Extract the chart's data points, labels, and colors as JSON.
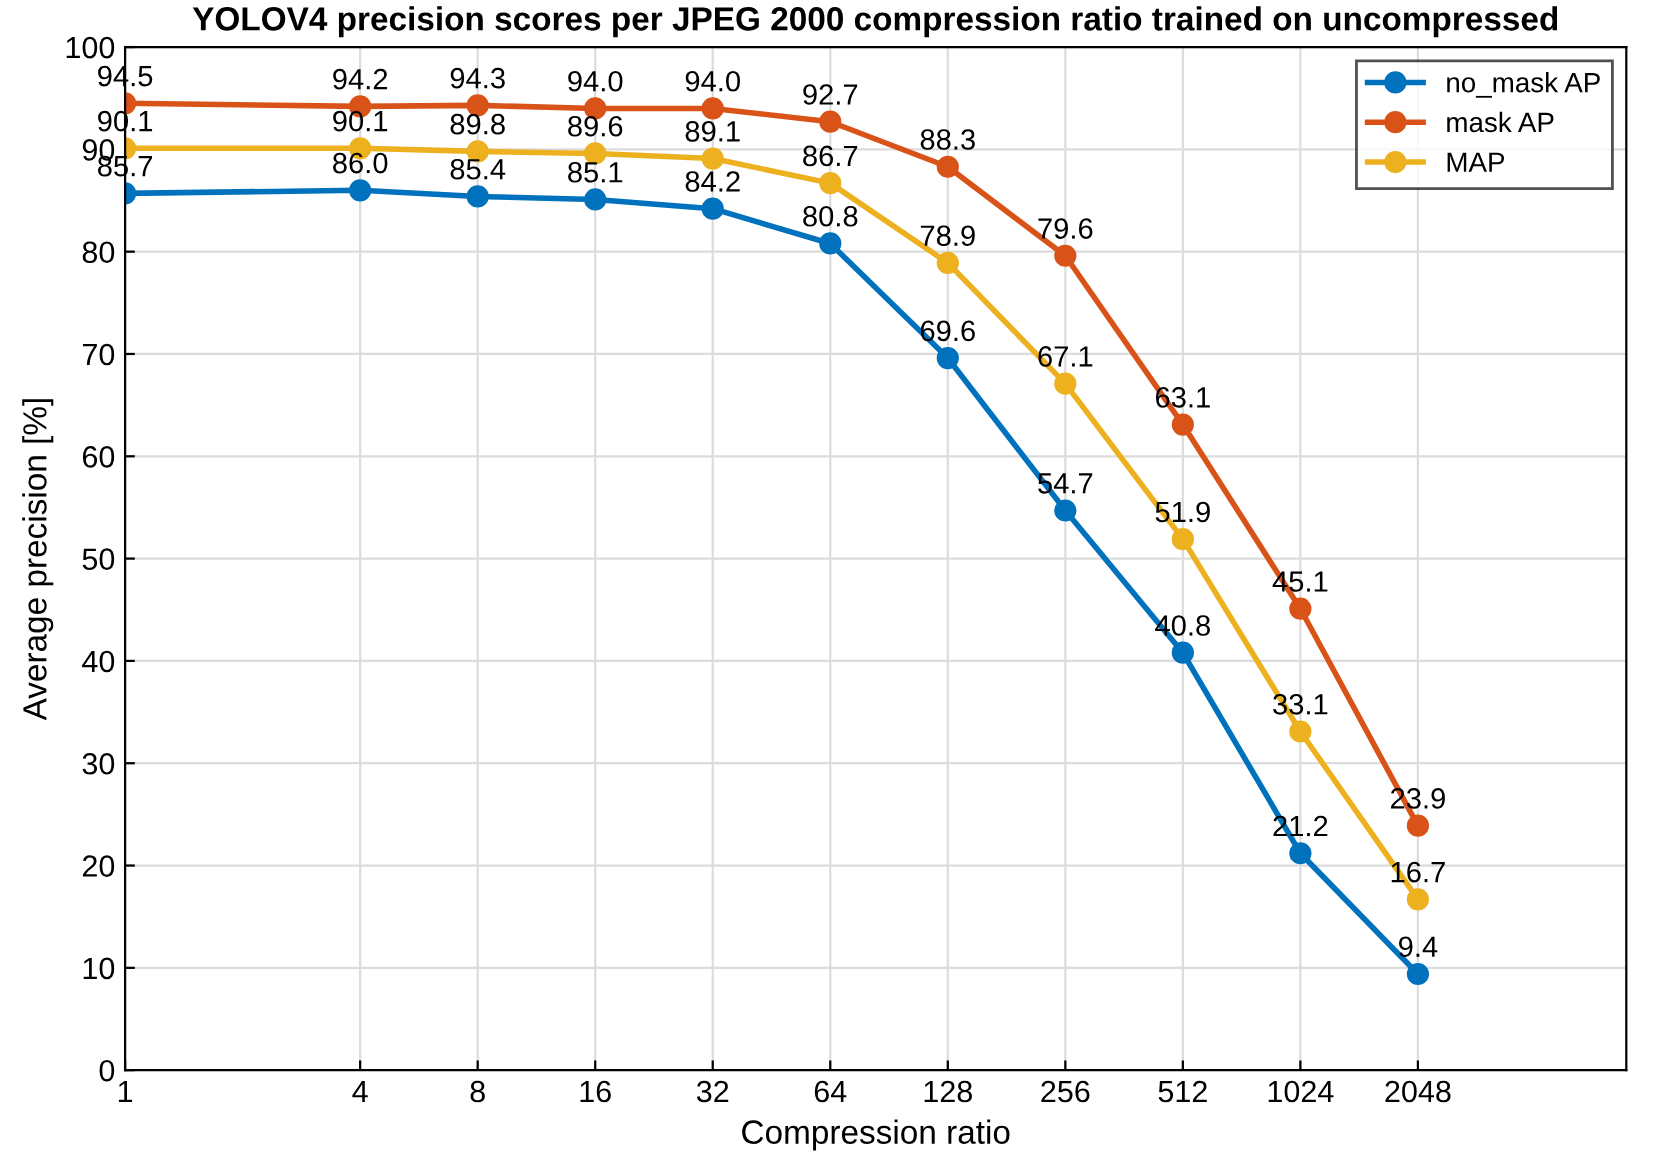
{
  "chart_data": {
    "type": "line",
    "title": "YOLOV4 precision scores per JPEG 2000 compression ratio trained on uncompressed",
    "xlabel": "Compression ratio",
    "ylabel": "Average precision [%]",
    "x": [
      1,
      4,
      8,
      16,
      32,
      64,
      128,
      256,
      512,
      1024,
      2048
    ],
    "series": [
      {
        "name": "no_mask AP",
        "color": "#0072bd",
        "values": [
          85.7,
          86.0,
          85.4,
          85.1,
          84.2,
          80.8,
          69.6,
          54.7,
          40.8,
          21.2,
          9.4
        ],
        "value_labels": [
          "85.7",
          "86.0",
          "85.4",
          "85.1",
          "84.2",
          "80.8",
          "69.6",
          "54.7",
          "40.8",
          "21.2",
          "9.4"
        ]
      },
      {
        "name": "mask AP",
        "color": "#d95319",
        "values": [
          94.5,
          94.2,
          94.3,
          94.0,
          94.0,
          92.7,
          88.3,
          79.6,
          63.1,
          45.1,
          23.9
        ],
        "value_labels": [
          "94.5",
          "94.2",
          "94.3",
          "94.0",
          "94.0",
          "92.7",
          "88.3",
          "79.6",
          "63.1",
          "45.1",
          "23.9"
        ]
      },
      {
        "name": "MAP",
        "color": "#edb120",
        "values": [
          90.1,
          90.1,
          89.8,
          89.6,
          89.1,
          86.7,
          78.9,
          67.1,
          51.9,
          33.1,
          16.7
        ],
        "value_labels": [
          "90.1",
          "90.1",
          "89.8",
          "89.6",
          "89.1",
          "86.7",
          "78.9",
          "67.1",
          "51.9",
          "33.1",
          "16.7"
        ]
      }
    ],
    "log": "x",
    "xlim": [
      1,
      7000
    ],
    "xticks": [
      1,
      4,
      8,
      16,
      32,
      64,
      128,
      256,
      512,
      1024,
      2048
    ],
    "ylim": [
      0,
      100
    ],
    "yticks": [
      0,
      10,
      20,
      30,
      40,
      50,
      60,
      70,
      80,
      90,
      100
    ],
    "grid": true,
    "legend": "top right",
    "marker": "circle",
    "line_style": "solid"
  }
}
